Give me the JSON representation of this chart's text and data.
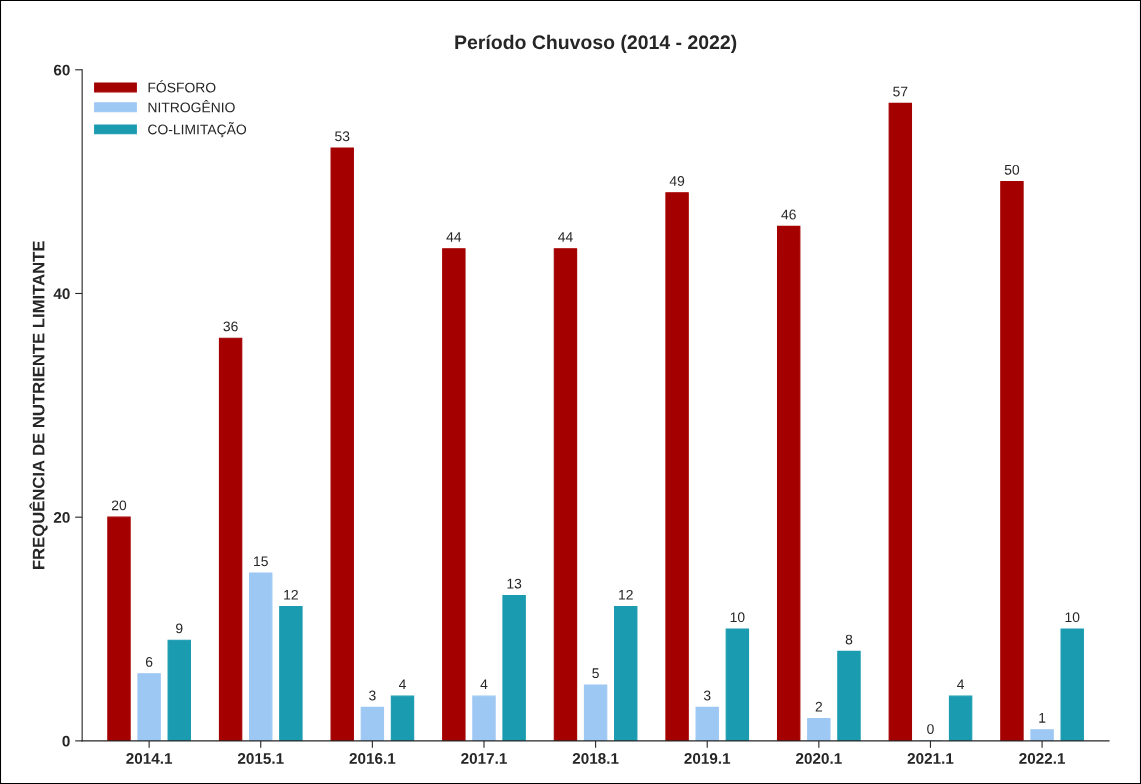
{
  "chart_data": {
    "type": "bar",
    "title": "Período Chuvoso (2014 - 2022)",
    "ylabel": "FREQUÊNCIA DE NUTRIENTE LIMITANTE",
    "categories": [
      "2014.1",
      "2015.1",
      "2016.1",
      "2017.1",
      "2018.1",
      "2019.1",
      "2020.1",
      "2021.1",
      "2022.1"
    ],
    "series": [
      {
        "name": "FÓSFORO",
        "color": "#a50000",
        "values": [
          20,
          36,
          53,
          44,
          44,
          49,
          46,
          57,
          50
        ]
      },
      {
        "name": "NITROGÊNIO",
        "color": "#9ec8f4",
        "values": [
          6,
          15,
          3,
          4,
          5,
          3,
          2,
          0,
          1
        ]
      },
      {
        "name": "CO-LIMITAÇÃO",
        "color": "#1a9bb0",
        "values": [
          9,
          12,
          4,
          13,
          12,
          10,
          8,
          4,
          10
        ]
      }
    ],
    "ylim": [
      0,
      60
    ],
    "yticks": [
      0,
      20,
      40,
      60
    ],
    "data_labels": true,
    "legend": "top left",
    "grid": false
  }
}
